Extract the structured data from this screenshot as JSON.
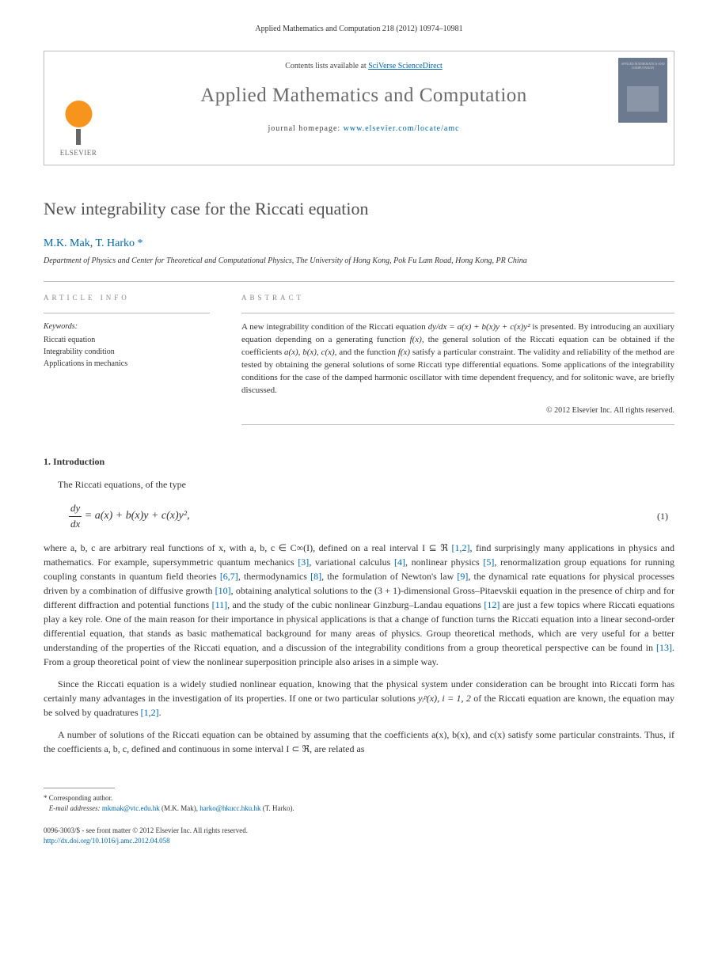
{
  "header": {
    "citation": "Applied Mathematics and Computation 218 (2012) 10974–10981"
  },
  "masthead": {
    "contents_prefix": "Contents lists available at",
    "contents_link": "SciVerse ScienceDirect",
    "journal_name": "Applied Mathematics and Computation",
    "homepage_prefix": "journal homepage:",
    "homepage_url": "www.elsevier.com/locate/amc",
    "publisher_name": "ELSEVIER",
    "cover_title": "APPLIED MATHEMATICS AND COMPUTATION"
  },
  "article": {
    "title": "New integrability case for the Riccati equation",
    "authors_html": "M.K. Mak, T. Harko",
    "author1": "M.K. Mak",
    "author2": "T. Harko",
    "corr_marker": "*",
    "affiliation": "Department of Physics and Center for Theoretical and Computational Physics, The University of Hong Kong, Pok Fu Lam Road, Hong Kong, PR China"
  },
  "info": {
    "heading": "ARTICLE INFO",
    "keywords_label": "Keywords:",
    "keywords": [
      "Riccati equation",
      "Integrability condition",
      "Applications in mechanics"
    ]
  },
  "abstract": {
    "heading": "ABSTRACT",
    "text": "A new integrability condition of the Riccati equation dy/dx = a(x) + b(x)y + c(x)y² is presented. By introducing an auxiliary equation depending on a generating function f(x), the general solution of the Riccati equation can be obtained if the coefficients a(x), b(x), c(x), and the function f(x) satisfy a particular constraint. The validity and reliability of the method are tested by obtaining the general solutions of some Riccati type differential equations. Some applications of the integrability conditions for the case of the damped harmonic oscillator with time dependent frequency, and for solitonic wave, are briefly discussed.",
    "copyright": "© 2012 Elsevier Inc. All rights reserved."
  },
  "body": {
    "sec1_heading": "1. Introduction",
    "p1": "The Riccati equations, of the type",
    "eqn1": "= a(x) + b(x)y + c(x)y²,",
    "eqn1_num": "(1)",
    "p2_pre": "where a, b, c are arbitrary real functions of x, with a, b, c ∈ C∞(I), defined on a real interval I ⊆ ℜ ",
    "p2_post": ", find surprisingly many applications in physics and mathematics. For example, supersymmetric quantum mechanics ",
    "p2_after3": ", variational calculus ",
    "p2_after4": ", nonlinear physics ",
    "p2_after5": ", renormalization group equations for running coupling constants in quantum field theories ",
    "p2_after67": ", thermodynamics ",
    "p2_after8": ", the formulation of Newton's law ",
    "p2_after9": ", the dynamical rate equations for physical processes driven by a combination of diffusive growth ",
    "p2_after10": ", obtaining analytical solutions to the (3 + 1)-dimensional Gross–Pitaevskii equation in the presence of chirp and for different diffraction and potential functions ",
    "p2_after11": ", and the study of the cubic nonlinear Ginzburg–Landau equations ",
    "p2_after12": " are just a few topics where Riccati equations play a key role. One of the main reason for their importance in physical applications is that a change of function turns the Riccati equation into a linear second-order differential equation, that stands as basic mathematical background for many areas of physics. Group theoretical methods, which are very useful for a better understanding of the properties of the Riccati equation, and a discussion of the integrability conditions from a group theoretical perspective can be found in ",
    "p2_after13": ". From a group theoretical point of view the nonlinear superposition principle also arises in a simple way.",
    "p3_pre": "Since the Riccati equation is a widely studied nonlinear equation, knowing that the physical system under consideration can be brought into Riccati form has certainly many advantages in the investigation of its properties. If one or two particular solutions ",
    "p3_yp": "yᵢᵖ(x),  i = 1, 2",
    "p3_post": " of the Riccati equation are known, the equation may be solved by quadratures ",
    "p3_end": ".",
    "p4": "A number of solutions of the Riccati equation can be obtained by assuming that the coefficients a(x), b(x), and c(x) satisfy some particular constraints. Thus, if the coefficients a, b, c, defined and continuous in some interval I ⊂ ℜ, are related as",
    "refs": {
      "r12": "[1,2]",
      "r3": "[3]",
      "r4": "[4]",
      "r5": "[5]",
      "r67": "[6,7]",
      "r8": "[8]",
      "r9": "[9]",
      "r10": "[10]",
      "r11": "[11]",
      "r12b": "[12]",
      "r13": "[13]",
      "r12c": "[1,2]"
    }
  },
  "footnote": {
    "corr_label": "* Corresponding author.",
    "email_label": "E-mail addresses:",
    "email1": "mkmak@vtc.edu.hk",
    "name1": "(M.K. Mak),",
    "email2": "harko@hkucc.hku.hk",
    "name2": "(T. Harko)."
  },
  "footer": {
    "line1": "0096-3003/$ - see front matter © 2012 Elsevier Inc. All rights reserved.",
    "doi": "http://dx.doi.org/10.1016/j.amc.2012.04.058"
  },
  "colors": {
    "link": "#0066aa",
    "text": "#333333",
    "heading_gray": "#888888",
    "title_gray": "#505050",
    "journal_gray": "#6b6b6b",
    "rule": "#bbbbbb",
    "elsevier_orange": "#f7941e",
    "cover_bg": "#6b7a8f"
  }
}
